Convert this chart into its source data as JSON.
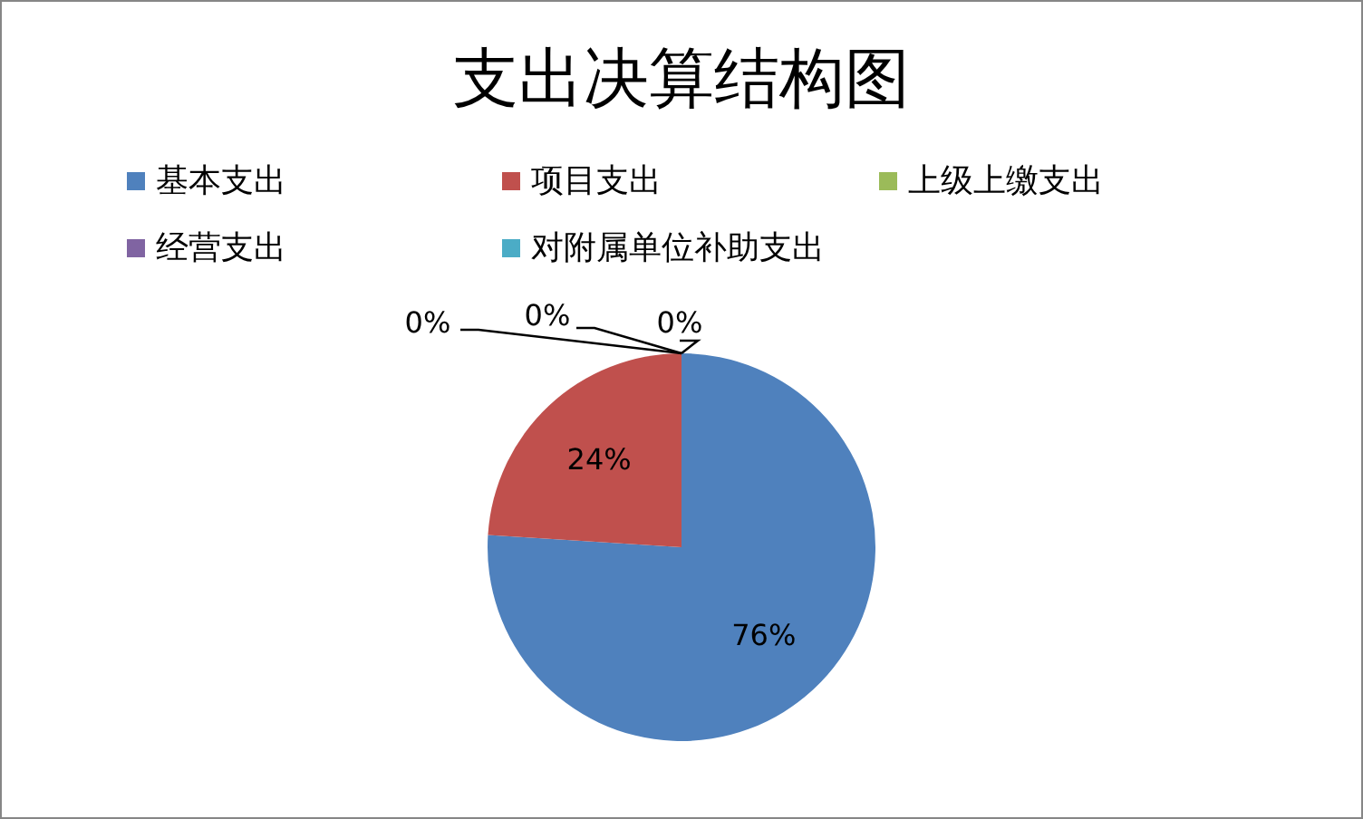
{
  "chart_data": {
    "type": "pie",
    "title": "支出决算结构图",
    "categories": [
      "基本支出",
      "项目支出",
      "上级上缴支出",
      "经营支出",
      "对附属单位补助支出"
    ],
    "values": [
      76,
      24,
      0,
      0,
      0
    ],
    "colors": [
      "#4f81bd",
      "#c0504d",
      "#9bbb59",
      "#8064a2",
      "#4bacc6"
    ],
    "value_labels": [
      "76%",
      "24%",
      "0%",
      "0%",
      "0%"
    ],
    "legend": "top"
  }
}
